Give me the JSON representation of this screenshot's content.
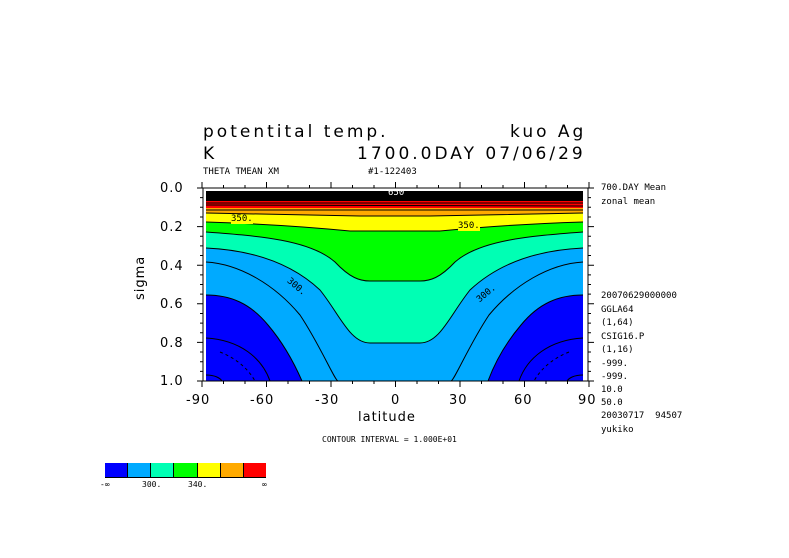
{
  "header": {
    "title": "potentital temp.",
    "model": "kuo Ag",
    "units": "K",
    "time": "1700.0DAY 07/06/29",
    "variable": "THETA TMEAN XM",
    "run_id": "#1-122403"
  },
  "side_info": [
    "700.DAY Mean",
    "zonal mean",
    "20070629000000",
    "GGLA64",
    "(1,64)",
    "CSIG16.P",
    "(1,16)",
    "-999.",
    "-999.",
    "10.0",
    "50.0",
    "20030717  94507",
    "yukiko"
  ],
  "footer": {
    "contour_interval": "CONTOUR INTERVAL = 1.000E+01"
  },
  "chart_data": {
    "type": "contour",
    "title": "potentital temp.",
    "xlabel": "latitude",
    "ylabel": "sigma",
    "xlim": [
      -90,
      90
    ],
    "ylim": [
      1.0,
      0.0
    ],
    "xticks": [
      "-90",
      "-60",
      "-30",
      "0",
      "30",
      "60",
      "90"
    ],
    "yticks": [
      "0.0",
      "0.2",
      "0.4",
      "0.6",
      "0.8",
      "1.0"
    ],
    "contour_interval": 10,
    "contour_labels": [
      "350.",
      "350.",
      "300.",
      "300.",
      "650"
    ],
    "colorbar": {
      "labels": [
        "-∞",
        "300.",
        "340.",
        "∞"
      ],
      "colors": [
        "#0000ff",
        "#00aaff",
        "#00ffb4",
        "#00ff00",
        "#ffff00",
        "#ffaa00",
        "#ff0000"
      ]
    }
  }
}
